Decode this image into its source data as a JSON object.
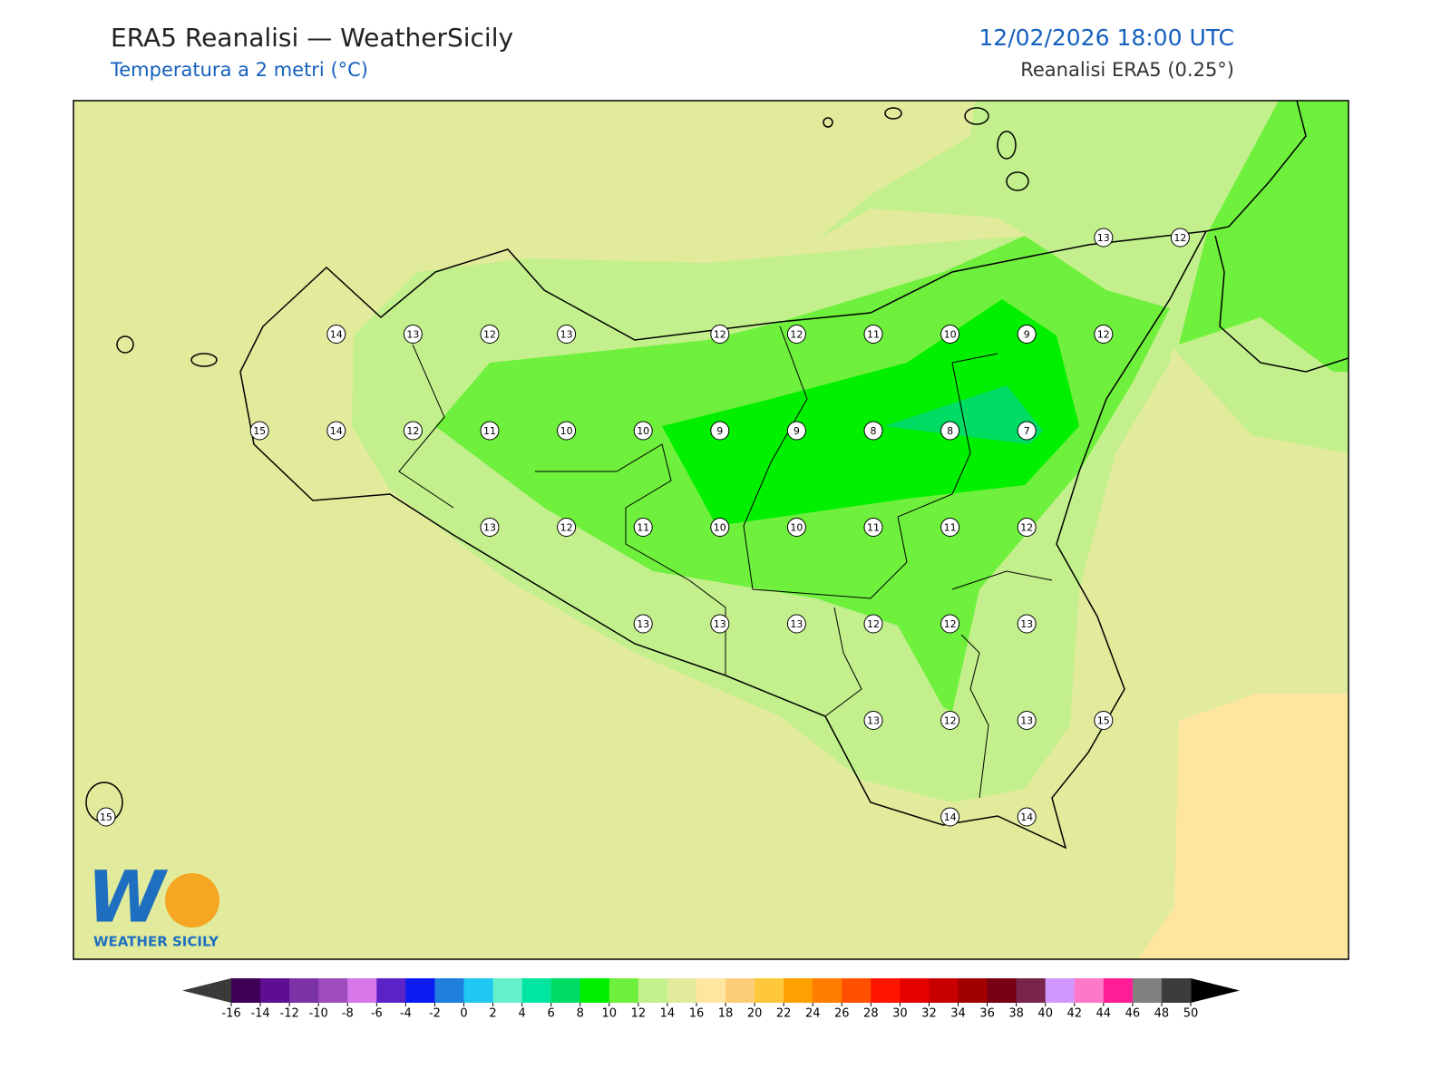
{
  "header": {
    "title": "ERA5 Reanalisi — WeatherSicily",
    "subtitle": "Temperatura a 2 metri (°C)",
    "datetime": "12/02/2026 18:00 UTC",
    "source": "Reanalisi ERA5 (0.25°)"
  },
  "map": {
    "station_grid": [
      [
        null,
        null,
        null,
        null,
        null,
        null,
        null,
        null,
        null,
        null,
        null,
        null,
        null,
        13,
        12
      ],
      [
        null,
        null,
        null,
        14,
        13,
        12,
        13,
        null,
        12,
        12,
        11,
        10,
        9,
        12,
        null
      ],
      [
        null,
        null,
        15,
        14,
        12,
        11,
        10,
        10,
        9,
        9,
        8,
        8,
        7,
        null,
        null
      ],
      [
        null,
        null,
        null,
        null,
        null,
        13,
        12,
        11,
        10,
        10,
        11,
        11,
        12,
        null,
        null
      ],
      [
        null,
        null,
        null,
        null,
        null,
        null,
        null,
        13,
        13,
        13,
        12,
        12,
        13,
        null,
        null
      ],
      [
        null,
        null,
        null,
        null,
        null,
        null,
        null,
        null,
        null,
        null,
        13,
        12,
        13,
        15,
        null
      ],
      [
        15,
        null,
        null,
        null,
        null,
        null,
        null,
        null,
        null,
        null,
        null,
        14,
        14,
        null,
        null
      ]
    ]
  },
  "logo": {
    "text": "WEATHER SICILY"
  },
  "colorbar": {
    "ticks": [
      -16,
      -14,
      -12,
      -10,
      -8,
      -6,
      -4,
      -2,
      0,
      2,
      4,
      6,
      8,
      10,
      12,
      14,
      16,
      18,
      20,
      22,
      24,
      26,
      28,
      30,
      32,
      34,
      36,
      38,
      40,
      42,
      44,
      46,
      48,
      50
    ],
    "colors": [
      "#3d0055",
      "#5e0f91",
      "#7d33a8",
      "#9e4cbc",
      "#d676e8",
      "#5b22c8",
      "#0a1cf0",
      "#1e7fdc",
      "#1ec8f0",
      "#64f0c8",
      "#00e6a0",
      "#00dc64",
      "#00f000",
      "#6ef03c",
      "#c3f08c",
      "#e1eb9b",
      "#ffe6a0",
      "#fccd78",
      "#ffc83c",
      "#ffa000",
      "#ff7d00",
      "#ff5000",
      "#ff1400",
      "#e60000",
      "#c80000",
      "#a00000",
      "#780014",
      "#78244b",
      "#d296ff",
      "#ff78c8",
      "#ff1e96",
      "#808080",
      "#3c3c3c"
    ],
    "under_color": "#3a3a3a",
    "over_color": "#000000"
  }
}
